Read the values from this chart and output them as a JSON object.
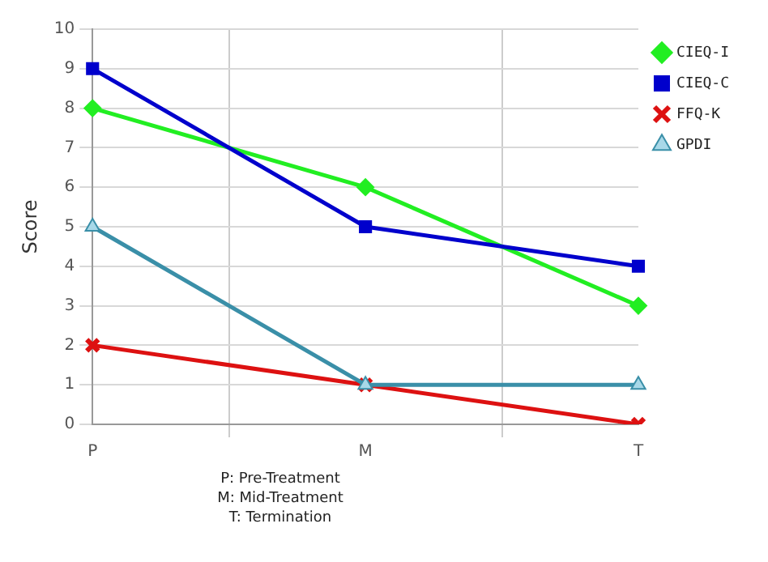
{
  "chart_data": {
    "type": "line",
    "ylabel": "Score",
    "categories": [
      "P",
      "M",
      "T"
    ],
    "series": [
      {
        "name": "CIEQ-I",
        "color": "#22ee22",
        "values": [
          8,
          6,
          3
        ],
        "marker": "diamond"
      },
      {
        "name": "CIEQ-C",
        "color": "#0000cc",
        "values": [
          9,
          5,
          4
        ],
        "marker": "square"
      },
      {
        "name": "FFQ-K",
        "color": "#dd1111",
        "values": [
          2,
          1,
          0
        ],
        "marker": "cross"
      },
      {
        "name": "GPDI",
        "color": "#3a8fa8",
        "values": [
          5,
          1,
          1
        ],
        "marker": "triangle"
      }
    ],
    "ylim": [
      0,
      10
    ],
    "yticks": [
      0,
      1,
      2,
      3,
      4,
      5,
      6,
      7,
      8,
      9,
      10
    ],
    "grid": true,
    "legend": "top right",
    "line_style": "solid",
    "annotations": [
      "P: Pre-Treatment",
      "M: Mid-Treatment",
      "T: Termination"
    ]
  }
}
